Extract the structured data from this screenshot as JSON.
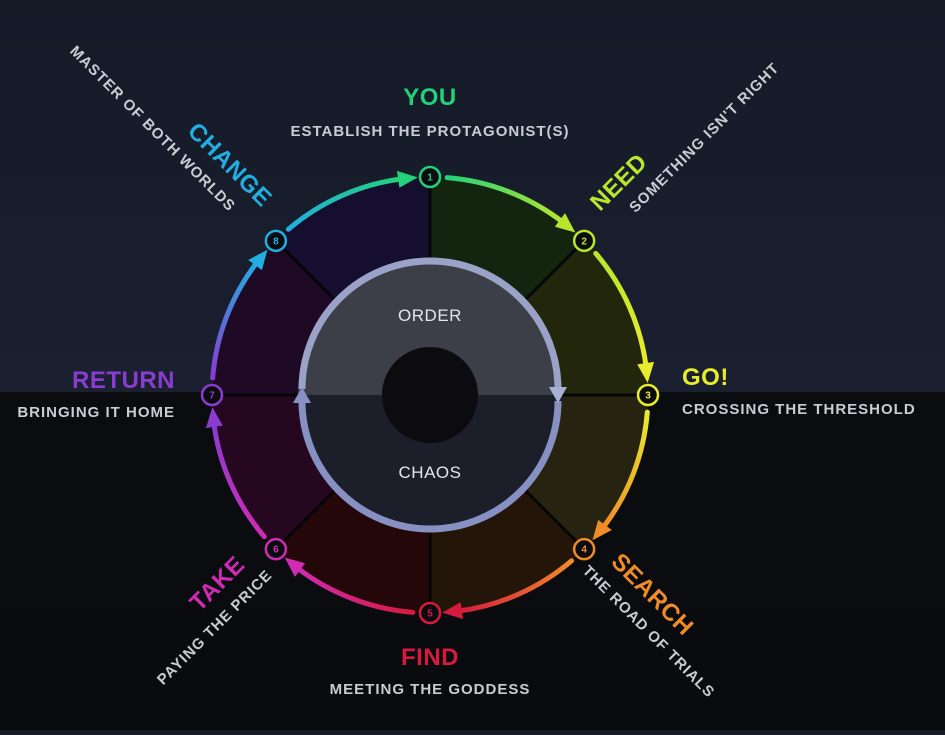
{
  "diagram": {
    "center": {
      "top_label": "ORDER",
      "bottom_label": "CHAOS"
    },
    "steps": [
      {
        "number": "1",
        "title": "YOU",
        "subtitle": "ESTABLISH THE PROTAGONIST(S)",
        "color": "#22d17a",
        "sector_color": "#0f2a25"
      },
      {
        "number": "2",
        "title": "NEED",
        "subtitle": "SOMETHING ISN'T RIGHT",
        "color": "#b8e62c",
        "sector_color": "#14250f"
      },
      {
        "number": "3",
        "title": "GO!",
        "subtitle": "CROSSING THE THRESHOLD",
        "color": "#e9ec2c",
        "sector_color": "#22270c"
      },
      {
        "number": "4",
        "title": "SEARCH",
        "subtitle": "THE ROAD OF TRIALS",
        "color": "#f08c28",
        "sector_color": "#262410"
      },
      {
        "number": "5",
        "title": "FIND",
        "subtitle": "MEETING THE GODDESS",
        "color": "#d61a3e",
        "sector_color": "#231508"
      },
      {
        "number": "6",
        "title": "TAKE",
        "subtitle": "PAYING THE PRICE",
        "color": "#d12bb6",
        "sector_color": "#240709"
      },
      {
        "number": "7",
        "title": "RETURN",
        "subtitle": "BRINGING IT HOME",
        "color": "#8a3bd0",
        "sector_color": "#250820"
      },
      {
        "number": "8",
        "title": "CHANGE",
        "subtitle": "MASTER OF BOTH WORLDS",
        "color": "#22aee0",
        "sector_color": "#1f0a26"
      }
    ],
    "last_sector_color": "#150e2e",
    "order_color": "#3c3e48",
    "chaos_color": "#1c1e2a",
    "inner_ring_color": "#8790c2",
    "hub_color": "#0c0c10"
  }
}
